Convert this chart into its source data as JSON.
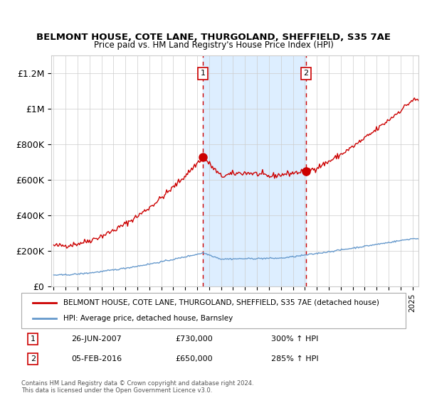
{
  "title": "BELMONT HOUSE, COTE LANE, THURGOLAND, SHEFFIELD, S35 7AE",
  "subtitle": "Price paid vs. HM Land Registry's House Price Index (HPI)",
  "legend_label_red": "BELMONT HOUSE, COTE LANE, THURGOLAND, SHEFFIELD, S35 7AE (detached house)",
  "legend_label_blue": "HPI: Average price, detached house, Barnsley",
  "transaction1_date": "26-JUN-2007",
  "transaction1_price": 730000,
  "transaction1_hpi": "300% ↑ HPI",
  "transaction2_date": "05-FEB-2016",
  "transaction2_price": 650000,
  "transaction2_hpi": "285% ↑ HPI",
  "copyright": "Contains HM Land Registry data © Crown copyright and database right 2024.\nThis data is licensed under the Open Government Licence v3.0.",
  "red_color": "#cc0000",
  "blue_color": "#6699cc",
  "shade_color": "#ddeeff",
  "grid_color": "#cccccc",
  "background_color": "#ffffff",
  "ylim": [
    0,
    1300000
  ],
  "yticks": [
    0,
    200000,
    400000,
    600000,
    800000,
    1000000,
    1200000
  ],
  "ytick_labels": [
    "£0",
    "£200K",
    "£400K",
    "£600K",
    "£800K",
    "£1M",
    "£1.2M"
  ],
  "xstart_year": 1995,
  "xend_year": 2025,
  "t1_year": 2007.48,
  "t2_year": 2016.09
}
